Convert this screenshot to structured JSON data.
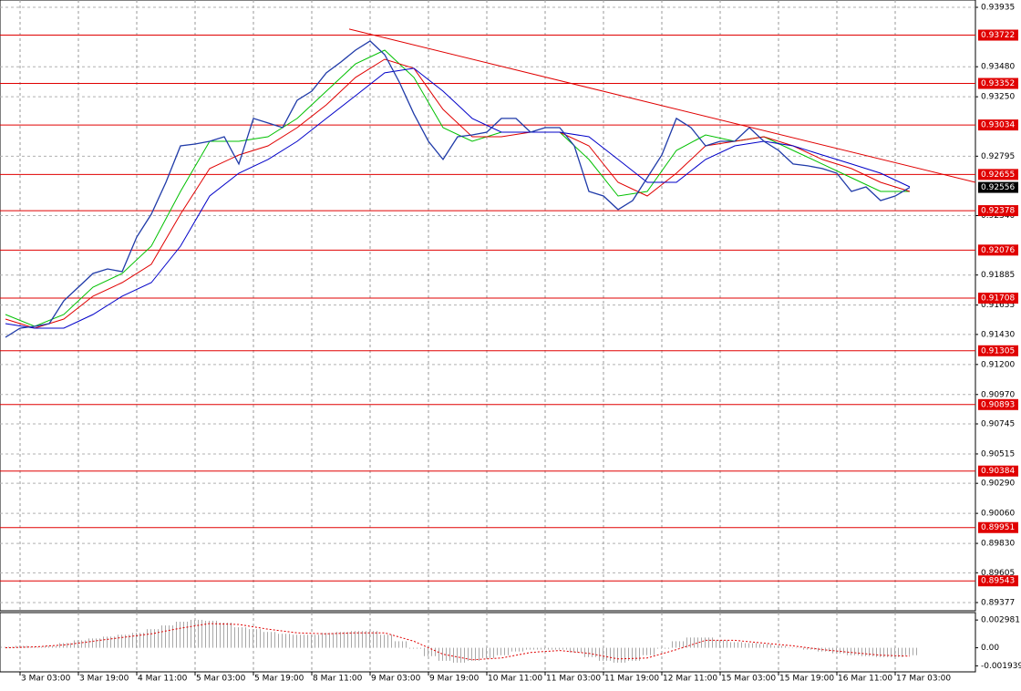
{
  "chart_data": [
    {
      "type": "line",
      "x": [
        -4,
        0,
        4,
        8,
        12,
        16,
        20,
        24,
        28,
        32,
        36,
        40,
        44,
        48,
        52,
        56,
        60,
        64,
        68,
        72,
        76,
        80,
        84,
        88,
        92,
        96,
        100,
        104,
        108,
        112,
        116,
        120,
        124,
        128,
        132,
        136,
        140,
        144,
        148,
        152,
        156,
        160,
        164,
        168,
        172,
        176,
        180,
        184,
        188,
        192,
        196,
        200,
        204,
        208,
        212,
        216,
        220,
        224,
        228,
        232,
        236,
        240,
        244
      ],
      "series": [
        {
          "color": "#1f3aa8",
          "values": [
            0.91408,
            0.91478,
            0.91492,
            0.91513,
            0.91688,
            0.91792,
            0.91897,
            0.91932,
            0.91911,
            0.92176,
            0.92351,
            0.92595,
            0.92874,
            0.92888,
            0.92909,
            0.92944,
            0.92735,
            0.93084,
            0.93049,
            0.93014,
            0.93223,
            0.93293,
            0.93433,
            0.93516,
            0.93607,
            0.93677,
            0.93572,
            0.93363,
            0.93119,
            0.92909,
            0.9277,
            0.92944,
            0.92958,
            0.92979,
            0.93084,
            0.93084,
            0.92979,
            0.93014,
            0.93014,
            0.92874,
            0.92525,
            0.9249,
            0.92386,
            0.92455,
            0.9263,
            0.92804,
            0.93084,
            0.93014,
            0.92874,
            0.92909,
            0.92909,
            0.93014,
            0.92909,
            0.92839,
            0.92735,
            0.92721,
            0.927,
            0.92665,
            0.92525,
            0.9256,
            0.92455,
            0.9249,
            0.92556
          ]
        },
        {
          "color": "#00c000",
          "x": [
            -4,
            4,
            12,
            20,
            28,
            36,
            44,
            52,
            60,
            68,
            76,
            84,
            92,
            100,
            108,
            116,
            124,
            132,
            140,
            148,
            156,
            164,
            172,
            180,
            188,
            196,
            204,
            212,
            220,
            228,
            236,
            244
          ],
          "values": [
            0.91583,
            0.91492,
            0.91583,
            0.91792,
            0.91897,
            0.92106,
            0.92525,
            0.92909,
            0.92909,
            0.92944,
            0.93084,
            0.93293,
            0.93502,
            0.93607,
            0.93398,
            0.93014,
            0.92909,
            0.92979,
            0.92979,
            0.92979,
            0.9277,
            0.9249,
            0.92525,
            0.92839,
            0.92958,
            0.92909,
            0.92944,
            0.92839,
            0.92735,
            0.9263,
            0.92525,
            0.92525
          ]
        },
        {
          "color": "#e00000",
          "x": [
            -4,
            4,
            12,
            20,
            28,
            36,
            44,
            52,
            60,
            68,
            76,
            84,
            92,
            100,
            108,
            116,
            124,
            132,
            140,
            148,
            156,
            164,
            172,
            180,
            188,
            196,
            204,
            212,
            220,
            228,
            236,
            244
          ],
          "values": [
            0.91548,
            0.91478,
            0.91548,
            0.91723,
            0.91827,
            0.91967,
            0.92351,
            0.927,
            0.92804,
            0.92874,
            0.93014,
            0.93188,
            0.93398,
            0.93537,
            0.93468,
            0.93153,
            0.92944,
            0.92944,
            0.92979,
            0.92979,
            0.92874,
            0.92595,
            0.9249,
            0.92665,
            0.92874,
            0.92909,
            0.92944,
            0.92874,
            0.9277,
            0.927,
            0.92595,
            0.92525
          ]
        },
        {
          "color": "#0000c8",
          "x": [
            -4,
            4,
            12,
            20,
            28,
            36,
            44,
            52,
            60,
            68,
            76,
            84,
            92,
            100,
            108,
            116,
            124,
            132,
            140,
            148,
            156,
            164,
            172,
            180,
            188,
            196,
            204,
            212,
            220,
            228,
            236,
            244
          ],
          "values": [
            0.91513,
            0.91478,
            0.91478,
            0.91583,
            0.91723,
            0.91827,
            0.92106,
            0.9249,
            0.92665,
            0.9277,
            0.92909,
            0.93084,
            0.93258,
            0.93433,
            0.93468,
            0.93293,
            0.93084,
            0.92979,
            0.92979,
            0.92979,
            0.92944,
            0.9277,
            0.92595,
            0.92595,
            0.9277,
            0.92874,
            0.92909,
            0.92874,
            0.92804,
            0.92735,
            0.92665,
            0.9256
          ]
        }
      ],
      "trendline": {
        "color": "#e00000",
        "x": [
          90.25,
          262
        ],
        "values": [
          0.93768,
          0.92595
        ]
      },
      "levels": {
        "color": "#e00000",
        "values": [
          0.93722,
          0.93352,
          0.93034,
          0.92655,
          0.92378,
          0.92076,
          0.91708,
          0.91305,
          0.90893,
          0.90384,
          0.89951,
          0.89543
        ]
      },
      "current_price": 0.92556,
      "xlim": [
        -5.5,
        262
      ],
      "ylim": [
        0.89314,
        0.93991
      ],
      "yticks": [
        0.93935,
        {
          "value": 0.9348,
          "label": "0.93480"
        },
        {
          "value": 0.9325,
          "label": "0.93250"
        },
        0.92795,
        {
          "value": 0.9234,
          "label": "0.92340"
        },
        0.91885,
        0.91655,
        {
          "value": 0.9143,
          "label": "0.91430"
        },
        {
          "value": 0.912,
          "label": "0.91200"
        },
        {
          "value": 0.9097,
          "label": "0.90970"
        },
        0.90745,
        0.90515,
        {
          "value": 0.9029,
          "label": "0.90290"
        },
        {
          "value": 0.9006,
          "label": "0.90060"
        },
        {
          "value": 0.8983,
          "label": "0.89830"
        },
        0.89605,
        0.89377
      ],
      "xticks": [
        {
          "value": 0,
          "label": "3 Mar 03:00"
        },
        {
          "value": 16,
          "label": "3 Mar 19:00"
        },
        {
          "value": 32,
          "label": "4 Mar 11:00"
        },
        {
          "value": 48,
          "label": "5 Mar 03:00"
        },
        {
          "value": 64,
          "label": "5 Mar 19:00"
        },
        {
          "value": 80,
          "label": "8 Mar 11:00"
        },
        {
          "value": 96,
          "label": "9 Mar 03:00"
        },
        {
          "value": 112,
          "label": "9 Mar 19:00"
        },
        {
          "value": 128,
          "label": "10 Mar 11:00"
        },
        {
          "value": 144,
          "label": "11 Mar 03:00"
        },
        {
          "value": 160,
          "label": "11 Mar 19:00"
        },
        {
          "value": 176,
          "label": "12 Mar 11:00"
        },
        {
          "value": 192,
          "label": "15 Mar 03:00"
        },
        {
          "value": 208,
          "label": "15 Mar 19:00"
        },
        {
          "value": 224,
          "label": "16 Mar 11:00"
        },
        {
          "value": 240,
          "label": "17 Mar 03:00"
        }
      ],
      "grid": true
    },
    {
      "type": "oscillator",
      "x": [
        -4,
        0,
        4,
        8,
        12,
        16,
        20,
        24,
        28,
        32,
        36,
        40,
        44,
        48,
        52,
        56,
        60,
        64,
        68,
        72,
        76,
        80,
        84,
        88,
        92,
        96,
        100,
        104,
        108,
        112,
        116,
        120,
        124,
        128,
        132,
        136,
        140,
        144,
        148,
        152,
        156,
        160,
        164,
        168,
        172,
        176,
        180,
        184,
        188,
        192,
        196,
        200,
        204,
        208,
        212,
        216,
        220,
        224,
        228,
        232,
        236,
        240,
        244
      ],
      "values": [
        0.0001,
        0.0002,
        0.0001,
        0.0002,
        0.0005,
        0.0008,
        0.001,
        0.0012,
        0.0014,
        0.0016,
        0.002,
        0.0024,
        0.0028,
        0.003,
        0.0029,
        0.0027,
        0.0022,
        0.002,
        0.0017,
        0.0015,
        0.0014,
        0.0014,
        0.0016,
        0.0017,
        0.0018,
        0.0018,
        0.0014,
        0.0007,
        -0.0001,
        -0.0009,
        -0.0014,
        -0.0016,
        -0.0014,
        -0.0011,
        -0.0008,
        -0.0004,
        -0.0002,
        -0.0002,
        -0.0002,
        -0.0005,
        -0.001,
        -0.0014,
        -0.0016,
        -0.0014,
        -0.0008,
        -0.0001,
        0.0007,
        0.0011,
        0.0011,
        0.0008,
        0.0006,
        0.0005,
        0.0004,
        0.0002,
        0,
        -0.0002,
        -0.0004,
        -0.0006,
        -0.0008,
        -0.0009,
        -0.001,
        -0.001,
        -0.0008
      ],
      "color": "#b4b4b4",
      "signal": {
        "color": "#e00000",
        "x": [
          -4,
          4,
          12,
          20,
          28,
          36,
          44,
          52,
          60,
          68,
          76,
          84,
          92,
          100,
          108,
          116,
          124,
          132,
          140,
          148,
          156,
          164,
          172,
          180,
          188,
          196,
          204,
          212,
          220,
          228,
          236,
          244
        ],
        "values": [
          0,
          0.0001,
          0.0003,
          0.0007,
          0.0011,
          0.0015,
          0.0021,
          0.0026,
          0.0025,
          0.002,
          0.0016,
          0.0015,
          0.0016,
          0.0016,
          0.0007,
          -0.0007,
          -0.0013,
          -0.0011,
          -0.0005,
          -0.0003,
          -0.0006,
          -0.0012,
          -0.0011,
          -0.0002,
          0.0008,
          0.0008,
          0.0005,
          0.0002,
          -0.0002,
          -0.0005,
          -0.0008,
          -0.0009
        ]
      },
      "xlim": [
        -5.5,
        262
      ],
      "ylim": [
        -0.00249,
        0.00368
      ],
      "yticks": [
        0.002981,
        {
          "value": 0,
          "label": "0.00"
        },
        -0.001939
      ]
    }
  ]
}
